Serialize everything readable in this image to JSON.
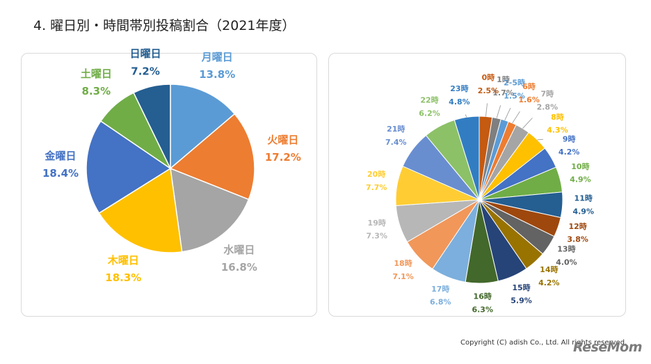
{
  "title": "4. 曜日別・時間帯別投稿割合（2021年度）",
  "footer": {
    "copyright": "Copyright (C) adish Co., Ltd. All rights reserved.",
    "watermark": "ReseMom"
  },
  "chart_data": [
    {
      "type": "pie",
      "title": "",
      "categories": [
        "月曜日",
        "火曜日",
        "水曜日",
        "木曜日",
        "金曜日",
        "土曜日",
        "日曜日"
      ],
      "values": [
        13.8,
        17.2,
        16.8,
        18.3,
        18.4,
        8.3,
        7.2
      ],
      "value_labels": [
        "13.8%",
        "17.2%",
        "16.8%",
        "18.3%",
        "18.4%",
        "8.3%",
        "7.2%"
      ],
      "colors": [
        "#5B9BD5",
        "#ED7D31",
        "#A5A5A5",
        "#FFC000",
        "#4472C4",
        "#70AD47",
        "#255E91"
      ],
      "start": "12 o'clock",
      "direction": "clockwise",
      "legend": "none"
    },
    {
      "type": "pie",
      "title": "",
      "categories": [
        "0時",
        "1時",
        "2-5時",
        "6時",
        "7時",
        "8時",
        "9時",
        "10時",
        "11時",
        "12時",
        "13時",
        "14時",
        "15時",
        "16時",
        "17時",
        "18時",
        "19時",
        "20時",
        "21時",
        "22時",
        "23時"
      ],
      "values": [
        2.5,
        1.7,
        1.5,
        1.6,
        2.8,
        4.3,
        4.2,
        4.9,
        4.9,
        3.8,
        4.0,
        4.2,
        5.9,
        6.3,
        6.8,
        7.1,
        7.3,
        7.7,
        7.4,
        6.2,
        4.8
      ],
      "value_labels": [
        "2.5%",
        "1.7%",
        "1.5%",
        "1.6%",
        "2.8%",
        "4.3%",
        "4.2%",
        "4.9%",
        "4.9%",
        "3.8%",
        "4.0%",
        "4.2%",
        "5.9%",
        "6.3%",
        "6.8%",
        "7.1%",
        "7.3%",
        "7.7%",
        "7.4%",
        "6.2%",
        "4.8%"
      ],
      "colors": [
        "#C55A11",
        "#7F7F7F",
        "#5B9BD5",
        "#ED7D31",
        "#A5A5A5",
        "#FFC000",
        "#4472C4",
        "#70AD47",
        "#255E91",
        "#9E480E",
        "#636363",
        "#997300",
        "#264478",
        "#43682B",
        "#7CAFDD",
        "#F1975A",
        "#B7B7B7",
        "#FFCD33",
        "#698ED0",
        "#8CC168",
        "#327DC2"
      ],
      "start": "12 o'clock",
      "direction": "clockwise",
      "legend": "none"
    }
  ]
}
